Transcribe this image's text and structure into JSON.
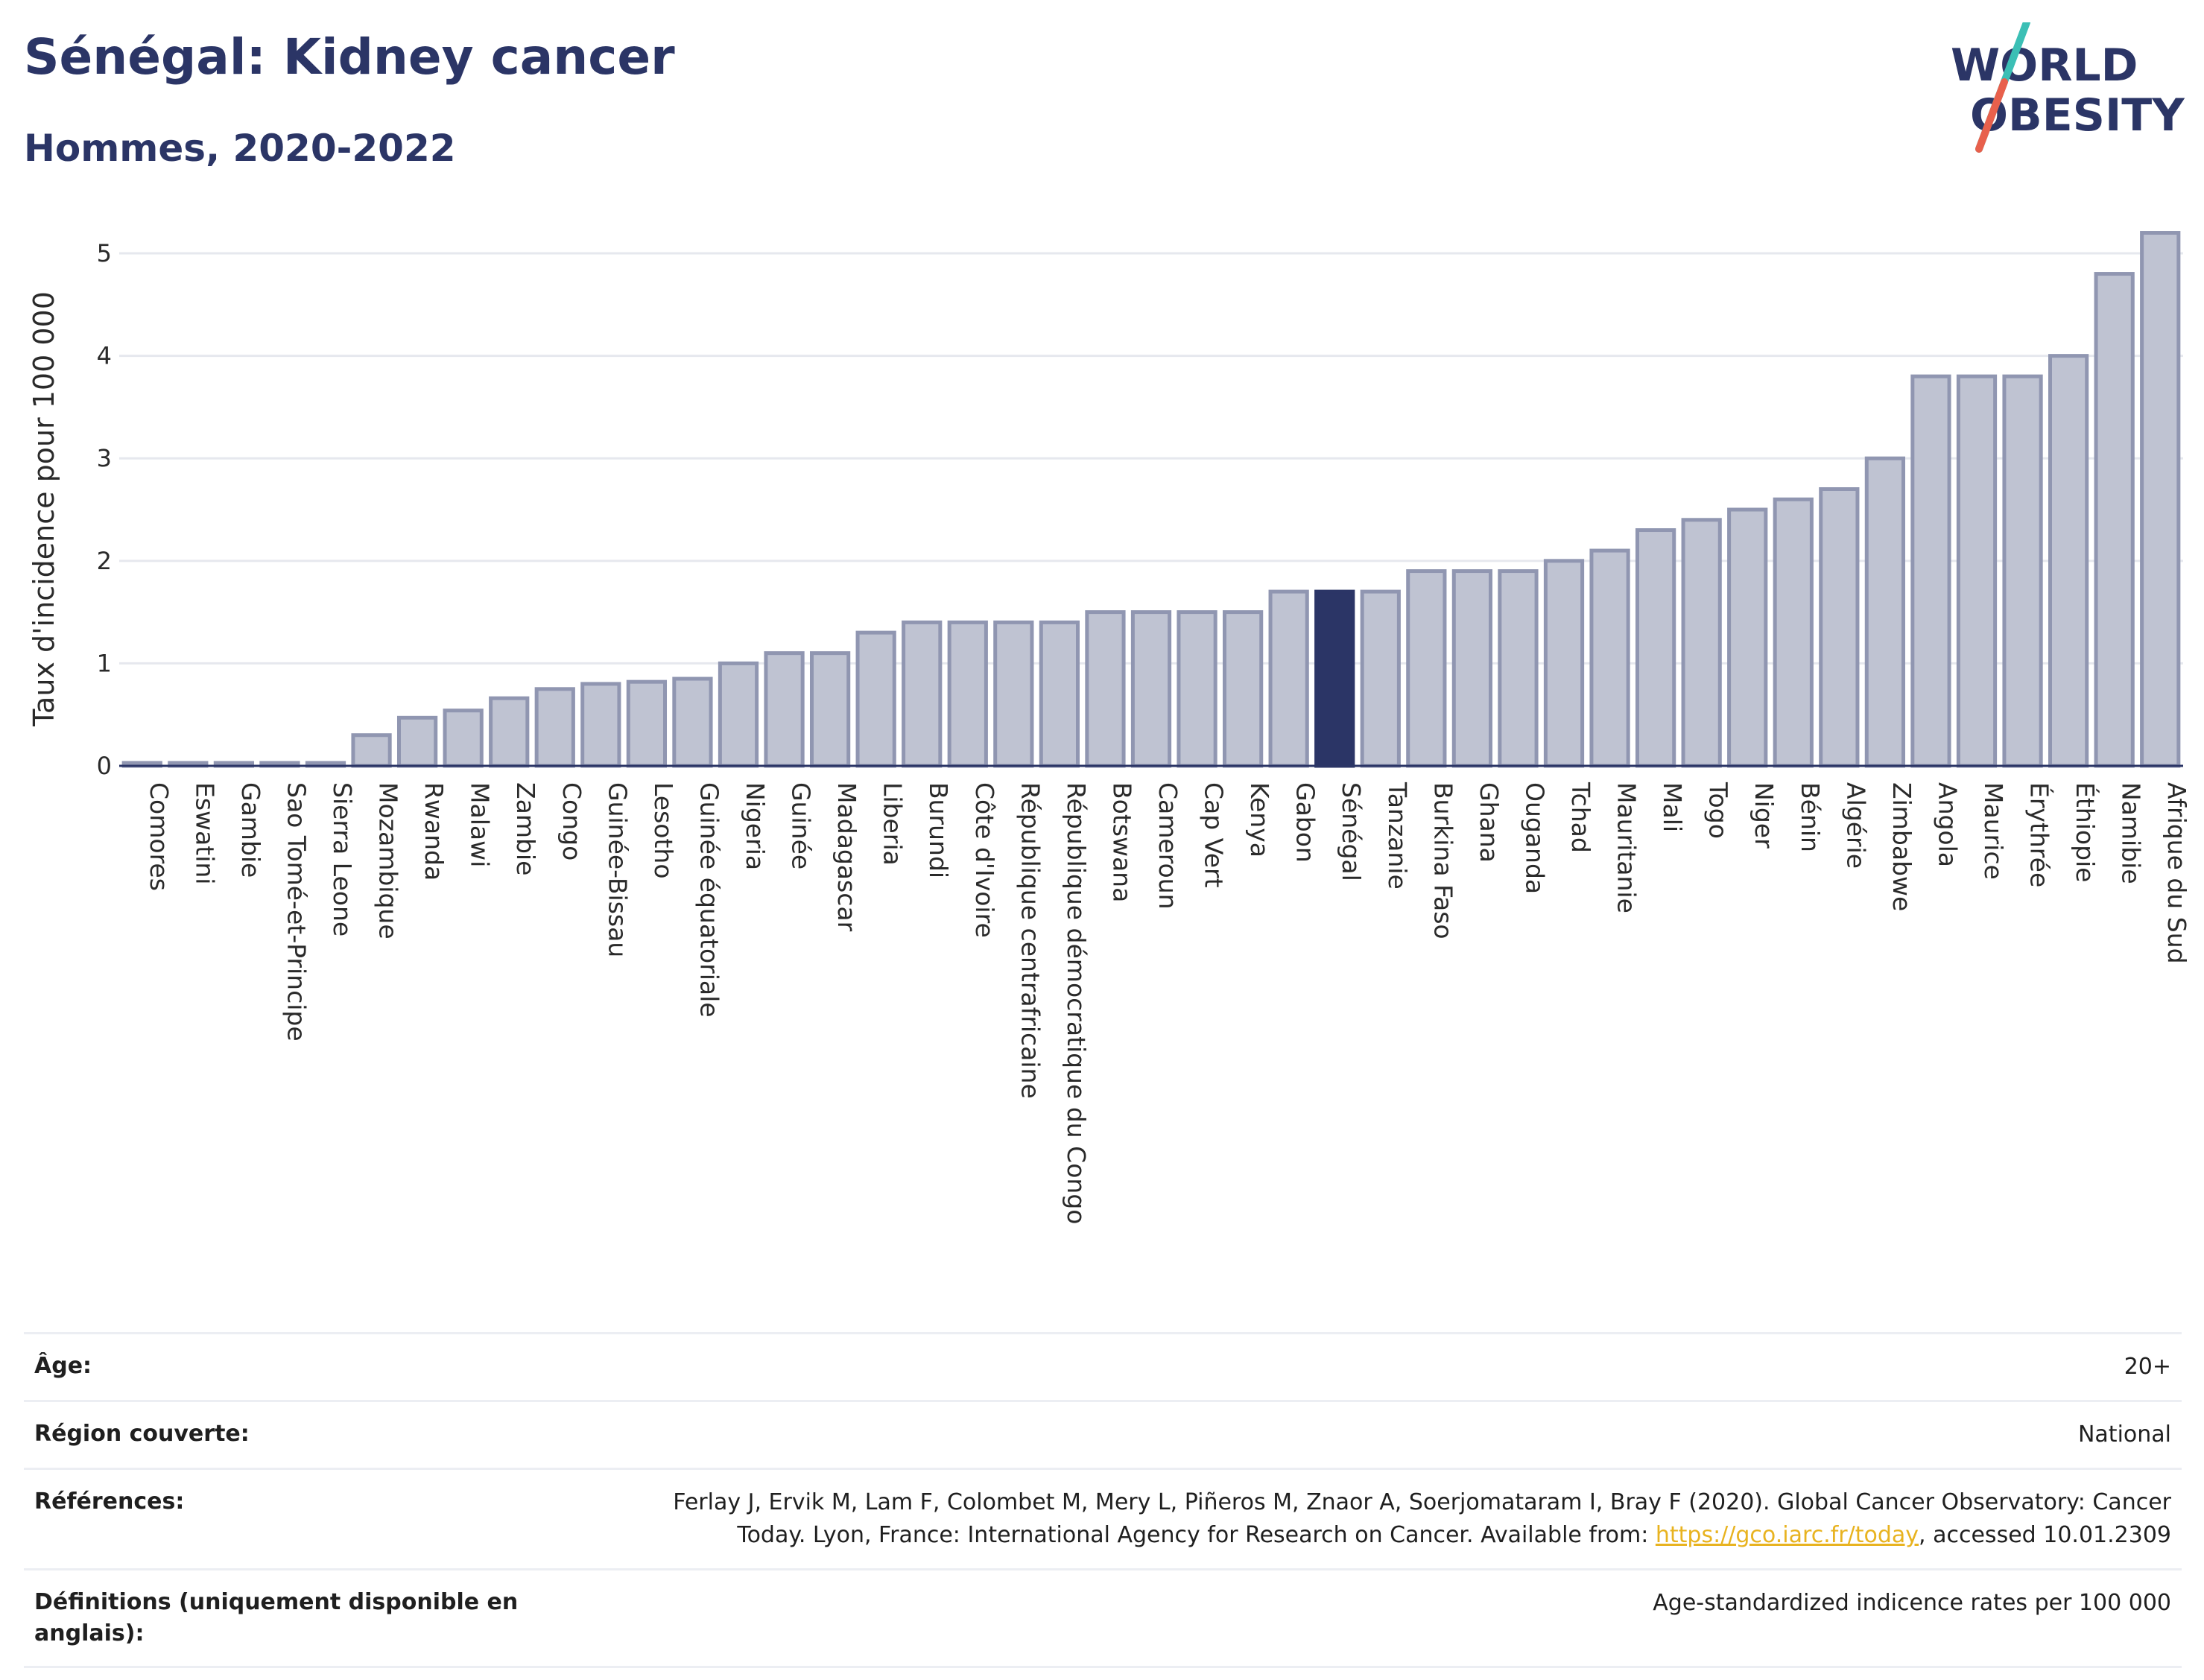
{
  "header": {
    "title": "Sénégal: Kidney cancer",
    "subtitle": "Hommes, 2020-2022"
  },
  "logo": {
    "line1": "WORLD",
    "line2": "OBESITY"
  },
  "chart_data": {
    "type": "bar",
    "ylabel": "Taux d'incidence pour 100 000",
    "xlabel": "",
    "ylim": [
      0,
      5.4
    ],
    "yticks": [
      0,
      1,
      2,
      3,
      4,
      5
    ],
    "highlight": "Sénégal",
    "colors": {
      "bar": "#bfc3d2",
      "bar_stroke": "#9096b1",
      "highlight": "#2b3566",
      "grid": "#e6e8ee",
      "axis": "#2b3566"
    },
    "categories": [
      "Comores",
      "Eswatini",
      "Gambie",
      "Sao Tomé-et-Principe",
      "Sierra Leone",
      "Mozambique",
      "Rwanda",
      "Malawi",
      "Zambie",
      "Congo",
      "Guinée-Bissau",
      "Lesotho",
      "Guinée équatoriale",
      "Nigeria",
      "Guinée",
      "Madagascar",
      "Liberia",
      "Burundi",
      "Côte d'Ivoire",
      "République centrafricaine",
      "République démocratique du Congo",
      "Botswana",
      "Cameroun",
      "Cap Vert",
      "Kenya",
      "Gabon",
      "Sénégal",
      "Tanzanie",
      "Burkina Faso",
      "Ghana",
      "Ouganda",
      "Tchad",
      "Mauritanie",
      "Mali",
      "Togo",
      "Niger",
      "Bénin",
      "Algérie",
      "Zimbabwe",
      "Angola",
      "Maurice",
      "Érythrée",
      "Éthiopie",
      "Namibie",
      "Afrique du Sud"
    ],
    "values": [
      0.0,
      0.0,
      0.0,
      0.0,
      0.0,
      0.3,
      0.47,
      0.54,
      0.66,
      0.75,
      0.8,
      0.82,
      0.85,
      1.0,
      1.1,
      1.1,
      1.3,
      1.4,
      1.4,
      1.4,
      1.4,
      1.5,
      1.5,
      1.5,
      1.5,
      1.7,
      1.7,
      1.7,
      1.9,
      1.9,
      1.9,
      2.0,
      2.1,
      2.3,
      2.4,
      2.5,
      2.6,
      2.7,
      3.0,
      3.8,
      3.8,
      3.8,
      4.0,
      4.8,
      5.2
    ]
  },
  "meta": {
    "age_label": "Âge:",
    "age_value": "20+",
    "region_label": "Région couverte:",
    "region_value": "National",
    "refs_label": "Références:",
    "refs_text_1": "Ferlay J, Ervik M, Lam F, Colombet M, Mery L, Piñeros M, Znaor A, Soerjomataram I, Bray F (2020). Global Cancer Observatory: Cancer",
    "refs_text_2": "Today. Lyon, France: International Agency for Research on Cancer. Available from: ",
    "refs_link": "https://gco.iarc.fr/today",
    "refs_text_3": ", accessed 10.01.2309",
    "defs_label": "Définitions (uniquement disponible en anglais):",
    "defs_value": "Age-standardized indicence rates per 100 000"
  }
}
